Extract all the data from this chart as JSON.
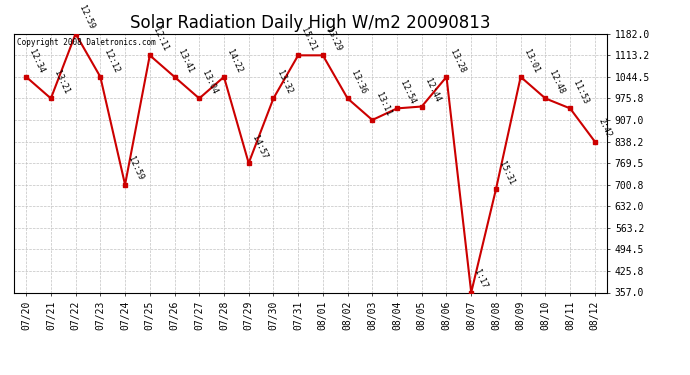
{
  "title": "Solar Radiation Daily High W/m2 20090813",
  "copyright": "Copyright 2008 Daletronics.com",
  "x_labels": [
    "07/20",
    "07/21",
    "07/22",
    "07/23",
    "07/24",
    "07/25",
    "07/26",
    "07/27",
    "07/28",
    "07/29",
    "07/30",
    "07/31",
    "08/01",
    "08/02",
    "08/03",
    "08/04",
    "08/05",
    "08/06",
    "08/07",
    "08/08",
    "08/09",
    "08/10",
    "08/11",
    "08/12"
  ],
  "y_values": [
    1044.5,
    975.8,
    1182.0,
    1044.5,
    700.8,
    1113.2,
    1044.5,
    975.8,
    1044.5,
    769.5,
    975.8,
    1113.2,
    1113.2,
    975.8,
    907.0,
    944.0,
    950.0,
    1044.5,
    357.0,
    686.0,
    1044.5,
    975.8,
    944.0,
    838.2
  ],
  "time_labels": [
    "12:34",
    "13:21",
    "12:59",
    "12:12",
    "12:59",
    "12:11",
    "13:41",
    "13:04",
    "14:22",
    "14:57",
    "13:32",
    "15:21",
    "13:29",
    "13:36",
    "13:11",
    "12:54",
    "12:44",
    "13:28",
    "1:17",
    "15:31",
    "13:01",
    "12:48",
    "11:53",
    "2:42"
  ],
  "line_color": "#cc0000",
  "marker_color": "#cc0000",
  "bg_color": "#ffffff",
  "grid_color": "#bbbbbb",
  "y_ticks": [
    357.0,
    425.8,
    494.5,
    563.2,
    632.0,
    700.8,
    769.5,
    838.2,
    907.0,
    975.8,
    1044.5,
    1113.2,
    1182.0
  ],
  "ylim": [
    357.0,
    1182.0
  ],
  "title_fontsize": 12,
  "tick_fontsize": 7,
  "annotation_fontsize": 6
}
